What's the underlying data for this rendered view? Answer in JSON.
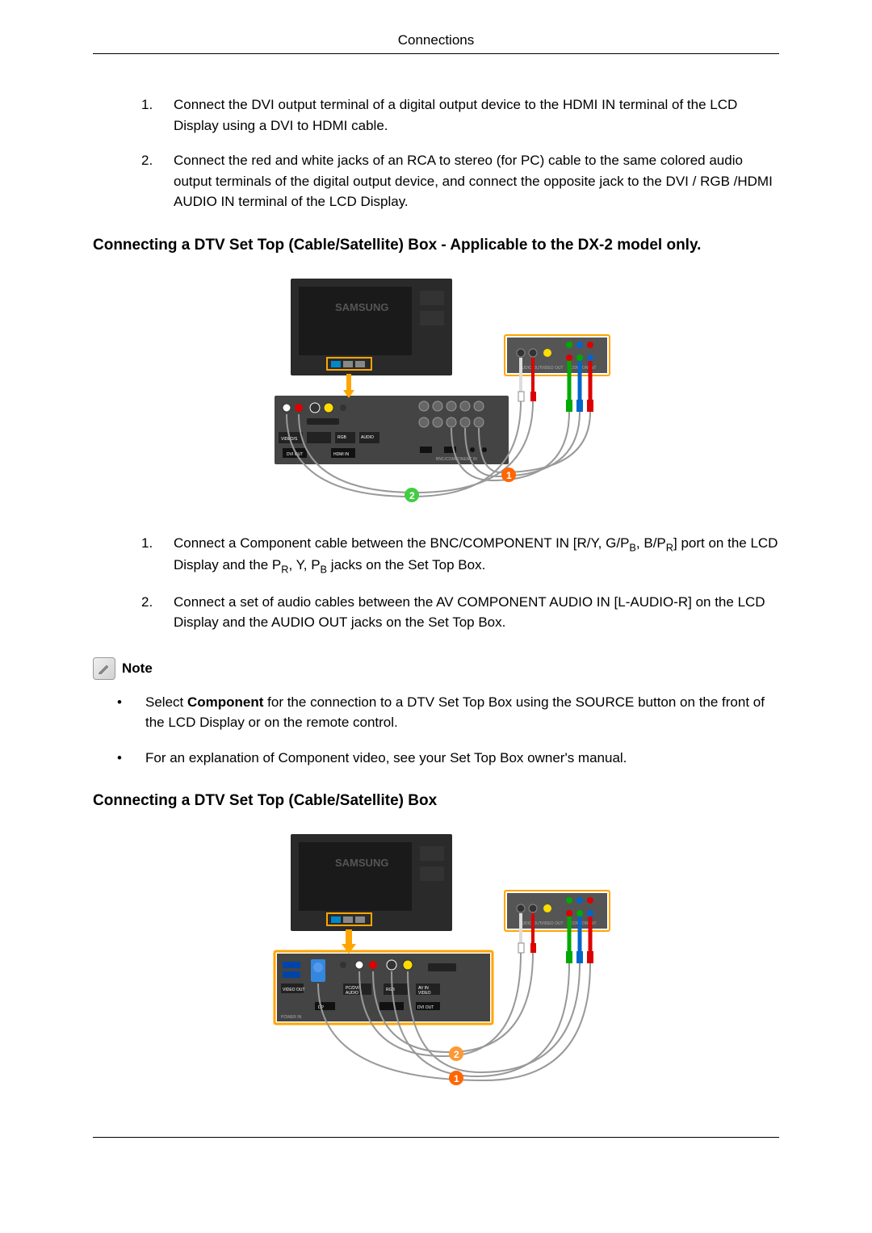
{
  "header": {
    "title": "Connections"
  },
  "topList": {
    "items": [
      {
        "number": "1.",
        "text": "Connect the DVI output terminal of a digital output device to the HDMI IN terminal of the LCD Display using a DVI to HDMI cable."
      },
      {
        "number": "2.",
        "text": "Connect the red and white jacks of an RCA to stereo (for PC) cable to the same colored audio output terminals of the digital output device, and connect the opposite jack to the DVI / RGB /HDMI AUDIO IN terminal of the LCD Display."
      }
    ]
  },
  "section1": {
    "heading": "Connecting a DTV Set Top (Cable/Satellite) Box - Applicable to the DX-2 model only.",
    "list": {
      "items": [
        {
          "number": "1.",
          "html": "Connect a Component cable between the BNC/COMPONENT IN [R/Y, G/P<span class='sub'>B</span>, B/P<span class='sub'>R</span>] port on the LCD Display and the P<span class='sub'>R</span>, Y, P<span class='sub'>B</span> jacks on the Set Top Box."
        },
        {
          "number": "2.",
          "text": "Connect a set of audio cables between the AV COMPONENT AUDIO IN [L-AUDIO-R] on the LCD Display and the AUDIO OUT jacks on the Set Top Box."
        }
      ]
    }
  },
  "note": {
    "label": "Note",
    "bullets": [
      {
        "html": "Select <span class='bold'>Component</span> for the connection to a DTV Set Top Box using the SOURCE button on the front of the LCD Display or on the remote control."
      },
      {
        "text": "For an explanation of Component video, see your Set Top Box owner's manual."
      }
    ]
  },
  "section2": {
    "heading": "Connecting a DTV Set Top (Cable/Satellite) Box"
  },
  "diagram1": {
    "monitor_bg": "#2a2a2a",
    "highlight_color": "#ffa500",
    "stb_bg": "#4a4a5a",
    "connector_colors": {
      "white": "#ffffff",
      "red": "#dd0000",
      "yellow": "#ffdd00",
      "green": "#00aa00",
      "blue": "#0066cc"
    },
    "callout1_color": "#ff6600",
    "callout2_color": "#44cc44",
    "label1": "1",
    "label2": "2"
  },
  "diagram2": {
    "monitor_bg": "#2a2a2a",
    "highlight_color": "#ffa500",
    "stb_bg": "#4a4a5a",
    "callout1_color": "#ff6600",
    "callout2_color": "#ff9933",
    "label1": "1",
    "label2": "2"
  },
  "brand_text": "SAMSUNG"
}
